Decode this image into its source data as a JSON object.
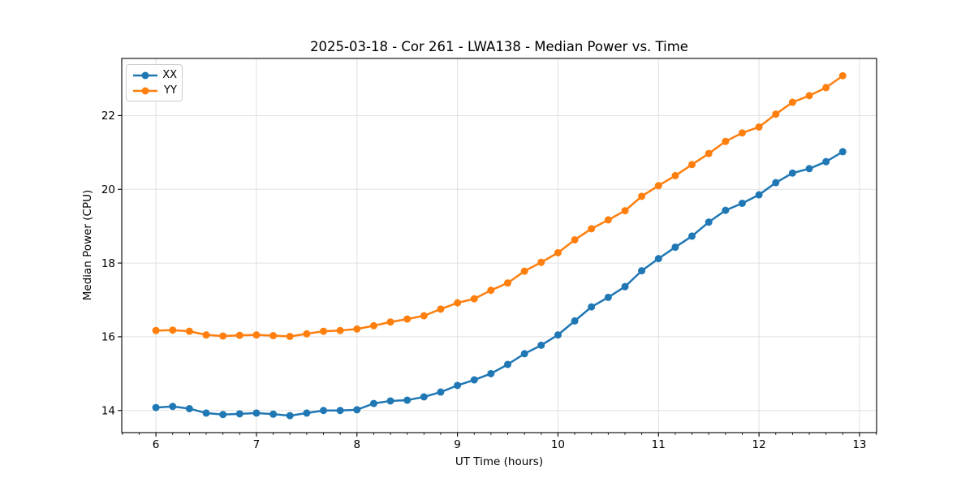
{
  "title": "2025-03-18 - Cor 261 - LWA138 - Median Power vs. Time",
  "chart_data": {
    "type": "line",
    "title": "2025-03-18 - Cor 261 - LWA138 - Median Power vs. Time",
    "xlabel": "UT Time (hours)",
    "ylabel": "Median Power (CPU)",
    "grid": true,
    "grid_color": "#e0e0e0",
    "spine_color": "#000000",
    "legend_position": "upper left",
    "marker": "circle",
    "xlim": [
      5.66,
      13.17
    ],
    "ylim": [
      13.4,
      23.55
    ],
    "xticks": [
      6,
      7,
      8,
      9,
      10,
      11,
      12,
      13
    ],
    "yticks": [
      14,
      16,
      18,
      20,
      22
    ],
    "x_minor_step": 0.1667,
    "x": [
      6,
      6.167,
      6.333,
      6.5,
      6.667,
      6.833,
      7,
      7.167,
      7.333,
      7.5,
      7.667,
      7.833,
      8,
      8.167,
      8.333,
      8.5,
      8.667,
      8.833,
      9,
      9.167,
      9.333,
      9.5,
      9.667,
      9.833,
      10,
      10.167,
      10.333,
      10.5,
      10.667,
      10.833,
      11,
      11.167,
      11.333,
      11.5,
      11.667,
      11.833,
      12,
      12.167,
      12.333,
      12.5,
      12.667,
      12.833
    ],
    "series": [
      {
        "name": "XX",
        "color": "#1f77b4",
        "values": [
          14.08,
          14.11,
          14.05,
          13.93,
          13.89,
          13.91,
          13.93,
          13.9,
          13.86,
          13.93,
          14.0,
          14.0,
          14.02,
          14.19,
          14.26,
          14.28,
          14.37,
          14.5,
          14.68,
          14.83,
          15.0,
          15.25,
          15.54,
          15.77,
          16.05,
          16.43,
          16.81,
          17.07,
          17.36,
          17.79,
          18.12,
          18.43,
          18.73,
          19.11,
          19.43,
          19.62,
          19.85,
          20.18,
          20.44,
          20.56,
          20.75,
          21.02
        ]
      },
      {
        "name": "YY",
        "color": "#ff7f0e",
        "values": [
          16.17,
          16.18,
          16.15,
          16.05,
          16.02,
          16.04,
          16.05,
          16.03,
          16.01,
          16.08,
          16.15,
          16.17,
          16.21,
          16.3,
          16.4,
          16.48,
          16.57,
          16.75,
          16.92,
          17.03,
          17.26,
          17.46,
          17.78,
          18.02,
          18.28,
          18.63,
          18.93,
          19.17,
          19.42,
          19.81,
          20.1,
          20.37,
          20.67,
          20.97,
          21.3,
          21.53,
          21.69,
          22.04,
          22.36,
          22.54,
          22.76,
          23.08
        ]
      }
    ]
  }
}
